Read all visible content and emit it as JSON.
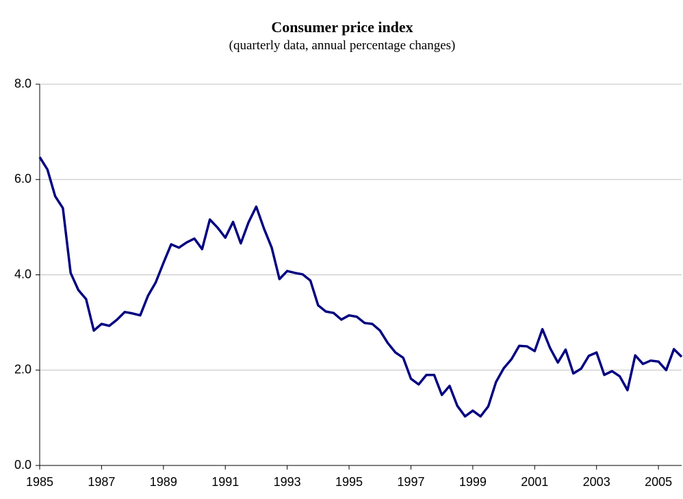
{
  "chart_data": {
    "type": "line",
    "title": "Consumer price index",
    "subtitle": "(quarterly data, annual percentage changes)",
    "x": [
      1985,
      1985.25,
      1985.5,
      1985.75,
      1986,
      1986.25,
      1986.5,
      1986.75,
      1987,
      1987.25,
      1987.5,
      1987.75,
      1988,
      1988.25,
      1988.5,
      1988.75,
      1989,
      1989.25,
      1989.5,
      1989.75,
      1990,
      1990.25,
      1990.5,
      1990.75,
      1991,
      1991.25,
      1991.5,
      1991.75,
      1992,
      1992.25,
      1992.5,
      1992.75,
      1993,
      1993.25,
      1993.5,
      1993.75,
      1994,
      1994.25,
      1994.5,
      1994.75,
      1995,
      1995.25,
      1995.5,
      1995.75,
      1996,
      1996.25,
      1996.5,
      1996.75,
      1997,
      1997.25,
      1997.5,
      1997.75,
      1998,
      1998.25,
      1998.5,
      1998.75,
      1999,
      1999.25,
      1999.5,
      1999.75,
      2000,
      2000.25,
      2000.5,
      2000.75,
      2001,
      2001.25,
      2001.5,
      2001.75,
      2002,
      2002.25,
      2002.5,
      2002.75,
      2003,
      2003.25,
      2003.5,
      2003.75,
      2004,
      2004.25,
      2004.5,
      2004.75,
      2005,
      2005.25,
      2005.5,
      2005.75
    ],
    "series": [
      {
        "color": "#000080",
        "values": [
          6.47,
          6.21,
          5.65,
          5.4,
          4.04,
          3.68,
          3.49,
          2.83,
          2.97,
          2.93,
          3.06,
          3.22,
          3.19,
          3.15,
          3.56,
          3.84,
          4.25,
          4.64,
          4.57,
          4.68,
          4.76,
          4.54,
          5.16,
          4.99,
          4.78,
          5.11,
          4.66,
          5.1,
          5.43,
          4.97,
          4.57,
          3.91,
          4.08,
          4.04,
          4.01,
          3.88,
          3.36,
          3.23,
          3.2,
          3.06,
          3.15,
          3.12,
          2.99,
          2.97,
          2.83,
          2.57,
          2.37,
          2.26,
          1.82,
          1.7,
          1.9,
          1.9,
          1.48,
          1.67,
          1.25,
          1.03,
          1.15,
          1.03,
          1.24,
          1.75,
          2.04,
          2.23,
          2.51,
          2.5,
          2.4,
          2.86,
          2.46,
          2.16,
          2.43,
          1.93,
          2.03,
          2.3,
          2.37,
          1.9,
          1.98,
          1.87,
          1.58,
          2.31,
          2.13,
          2.2,
          2.18,
          2.0,
          2.44,
          2.28
        ]
      }
    ],
    "xlim": [
      1985,
      2005.75
    ],
    "xticks": [
      1985,
      1987,
      1989,
      1991,
      1993,
      1995,
      1997,
      1999,
      2001,
      2003,
      2005
    ],
    "ylim": [
      0,
      8
    ],
    "yticks": [
      {
        "value": 0,
        "label": "0.0"
      },
      {
        "value": 2,
        "label": "2.0"
      },
      {
        "value": 4,
        "label": "4.0"
      },
      {
        "value": 6,
        "label": "6.0"
      },
      {
        "value": 8,
        "label": "8.0"
      }
    ],
    "grid": true
  }
}
